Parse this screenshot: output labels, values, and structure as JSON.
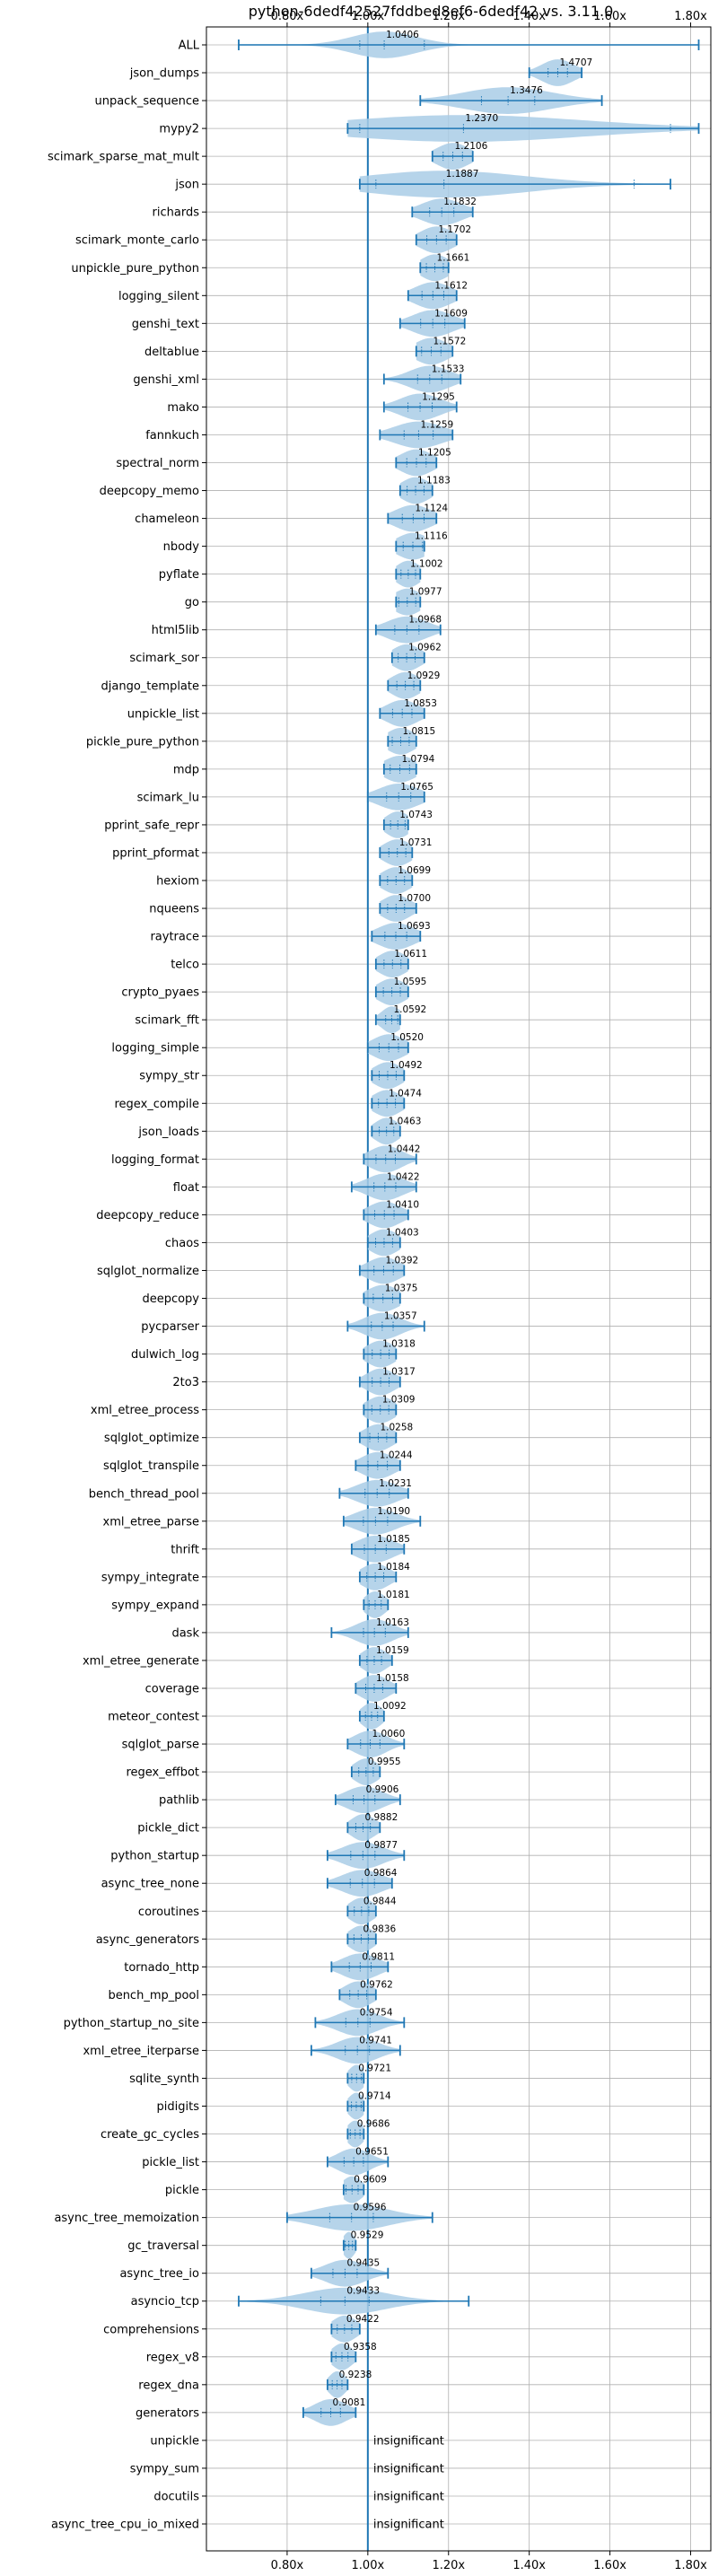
{
  "chart_data": {
    "type": "violin",
    "title": "python-6dedf42527fddbed8ef6-6dedf42 vs. 3.11.0",
    "xlabel": "",
    "ylabel": "",
    "xlim": [
      0.6,
      1.85
    ],
    "x_ticks": [
      0.8,
      1.0,
      1.2,
      1.4,
      1.6,
      1.8
    ],
    "x_tick_labels": [
      "0.80x",
      "1.00x",
      "1.20x",
      "1.40x",
      "1.60x",
      "1.80x"
    ],
    "x_axis_position": "top and bottom",
    "reference_line": 1.0,
    "grid": true,
    "series_color": "#1f77b4",
    "violin_fill": "#a9cce6",
    "insignificant_label": "insignificant",
    "benchmarks": [
      {
        "name": "ALL",
        "median": 1.0406,
        "label": "1.0406",
        "min": 0.68,
        "max": 1.82,
        "spread": 0.08,
        "q1": 0.98,
        "q3": 1.14
      },
      {
        "name": "json_dumps",
        "median": 1.4707,
        "label": "1.4707",
        "min": 1.4,
        "max": 1.53,
        "spread": 0.04
      },
      {
        "name": "unpack_sequence",
        "median": 1.3476,
        "label": "1.3476",
        "min": 1.13,
        "max": 1.58,
        "spread": 0.11
      },
      {
        "name": "mypy2",
        "median": 1.237,
        "label": "1.2370",
        "min": 0.95,
        "max": 1.82,
        "spread": 0.3,
        "q1": 0.98,
        "q3": 1.75
      },
      {
        "name": "scimark_sparse_mat_mult",
        "median": 1.2106,
        "label": "1.2106",
        "min": 1.16,
        "max": 1.26,
        "spread": 0.04
      },
      {
        "name": "json",
        "median": 1.1887,
        "label": "1.1887",
        "min": 0.98,
        "max": 1.75,
        "spread": 0.2,
        "q1": 1.02,
        "q3": 1.66
      },
      {
        "name": "richards",
        "median": 1.1832,
        "label": "1.1832",
        "min": 1.11,
        "max": 1.26,
        "spread": 0.05
      },
      {
        "name": "scimark_monte_carlo",
        "median": 1.1702,
        "label": "1.1702",
        "min": 1.12,
        "max": 1.22,
        "spread": 0.04
      },
      {
        "name": "unpickle_pure_python",
        "median": 1.1661,
        "label": "1.1661",
        "min": 1.13,
        "max": 1.2,
        "spread": 0.035
      },
      {
        "name": "logging_silent",
        "median": 1.1612,
        "label": "1.1612",
        "min": 1.1,
        "max": 1.22,
        "spread": 0.045
      },
      {
        "name": "genshi_text",
        "median": 1.1609,
        "label": "1.1609",
        "min": 1.08,
        "max": 1.24,
        "spread": 0.05
      },
      {
        "name": "deltablue",
        "median": 1.1572,
        "label": "1.1572",
        "min": 1.12,
        "max": 1.21,
        "spread": 0.04
      },
      {
        "name": "genshi_xml",
        "median": 1.1533,
        "label": "1.1533",
        "min": 1.04,
        "max": 1.23,
        "spread": 0.05
      },
      {
        "name": "mako",
        "median": 1.1295,
        "label": "1.1295",
        "min": 1.04,
        "max": 1.22,
        "spread": 0.05
      },
      {
        "name": "fannkuch",
        "median": 1.1259,
        "label": "1.1259",
        "min": 1.03,
        "max": 1.21,
        "spread": 0.06
      },
      {
        "name": "spectral_norm",
        "median": 1.1205,
        "label": "1.1205",
        "min": 1.07,
        "max": 1.17,
        "spread": 0.04
      },
      {
        "name": "deepcopy_memo",
        "median": 1.1183,
        "label": "1.1183",
        "min": 1.08,
        "max": 1.16,
        "spread": 0.035
      },
      {
        "name": "chameleon",
        "median": 1.1124,
        "label": "1.1124",
        "min": 1.05,
        "max": 1.17,
        "spread": 0.045
      },
      {
        "name": "nbody",
        "median": 1.1116,
        "label": "1.1116",
        "min": 1.07,
        "max": 1.14,
        "spread": 0.04
      },
      {
        "name": "pyflate",
        "median": 1.1002,
        "label": "1.1002",
        "min": 1.07,
        "max": 1.13,
        "spread": 0.03
      },
      {
        "name": "go",
        "median": 1.0977,
        "label": "1.0977",
        "min": 1.07,
        "max": 1.13,
        "spread": 0.035
      },
      {
        "name": "html5lib",
        "median": 1.0968,
        "label": "1.0968",
        "min": 1.02,
        "max": 1.18,
        "spread": 0.05
      },
      {
        "name": "scimark_sor",
        "median": 1.0962,
        "label": "1.0962",
        "min": 1.06,
        "max": 1.14,
        "spread": 0.035
      },
      {
        "name": "django_template",
        "median": 1.0929,
        "label": "1.0929",
        "min": 1.05,
        "max": 1.13,
        "spread": 0.035
      },
      {
        "name": "unpickle_list",
        "median": 1.0853,
        "label": "1.0853",
        "min": 1.03,
        "max": 1.14,
        "spread": 0.04
      },
      {
        "name": "pickle_pure_python",
        "median": 1.0815,
        "label": "1.0815",
        "min": 1.05,
        "max": 1.12,
        "spread": 0.035
      },
      {
        "name": "mdp",
        "median": 1.0794,
        "label": "1.0794",
        "min": 1.04,
        "max": 1.12,
        "spread": 0.04
      },
      {
        "name": "scimark_lu",
        "median": 1.0765,
        "label": "1.0765",
        "min": 1.0,
        "max": 1.14,
        "spread": 0.05
      },
      {
        "name": "pprint_safe_repr",
        "median": 1.0743,
        "label": "1.0743",
        "min": 1.04,
        "max": 1.1,
        "spread": 0.03
      },
      {
        "name": "pprint_pformat",
        "median": 1.0731,
        "label": "1.0731",
        "min": 1.03,
        "max": 1.11,
        "spread": 0.035
      },
      {
        "name": "hexiom",
        "median": 1.0699,
        "label": "1.0699",
        "min": 1.03,
        "max": 1.11,
        "spread": 0.035
      },
      {
        "name": "nqueens",
        "median": 1.07,
        "label": "1.0700",
        "min": 1.03,
        "max": 1.12,
        "spread": 0.035
      },
      {
        "name": "raytrace",
        "median": 1.0693,
        "label": "1.0693",
        "min": 1.01,
        "max": 1.13,
        "spread": 0.045
      },
      {
        "name": "telco",
        "median": 1.0611,
        "label": "1.0611",
        "min": 1.02,
        "max": 1.1,
        "spread": 0.035
      },
      {
        "name": "crypto_pyaes",
        "median": 1.0595,
        "label": "1.0595",
        "min": 1.02,
        "max": 1.1,
        "spread": 0.035
      },
      {
        "name": "scimark_fft",
        "median": 1.0592,
        "label": "1.0592",
        "min": 1.02,
        "max": 1.08,
        "spread": 0.025
      },
      {
        "name": "logging_simple",
        "median": 1.052,
        "label": "1.0520",
        "min": 1.0,
        "max": 1.1,
        "spread": 0.04
      },
      {
        "name": "sympy_str",
        "median": 1.0492,
        "label": "1.0492",
        "min": 1.01,
        "max": 1.09,
        "spread": 0.035
      },
      {
        "name": "regex_compile",
        "median": 1.0474,
        "label": "1.0474",
        "min": 1.01,
        "max": 1.09,
        "spread": 0.035
      },
      {
        "name": "json_loads",
        "median": 1.0463,
        "label": "1.0463",
        "min": 1.01,
        "max": 1.08,
        "spread": 0.03
      },
      {
        "name": "logging_format",
        "median": 1.0442,
        "label": "1.0442",
        "min": 0.99,
        "max": 1.12,
        "spread": 0.04
      },
      {
        "name": "float",
        "median": 1.0422,
        "label": "1.0422",
        "min": 0.96,
        "max": 1.12,
        "spread": 0.045
      },
      {
        "name": "deepcopy_reduce",
        "median": 1.041,
        "label": "1.0410",
        "min": 0.99,
        "max": 1.1,
        "spread": 0.04
      },
      {
        "name": "chaos",
        "median": 1.0403,
        "label": "1.0403",
        "min": 1.0,
        "max": 1.08,
        "spread": 0.035
      },
      {
        "name": "sqlglot_normalize",
        "median": 1.0392,
        "label": "1.0392",
        "min": 0.98,
        "max": 1.09,
        "spread": 0.04
      },
      {
        "name": "deepcopy",
        "median": 1.0375,
        "label": "1.0375",
        "min": 0.99,
        "max": 1.08,
        "spread": 0.04
      },
      {
        "name": "pycparser",
        "median": 1.0357,
        "label": "1.0357",
        "min": 0.95,
        "max": 1.14,
        "spread": 0.045
      },
      {
        "name": "dulwich_log",
        "median": 1.0318,
        "label": "1.0318",
        "min": 0.99,
        "max": 1.07,
        "spread": 0.035
      },
      {
        "name": "2to3",
        "median": 1.0317,
        "label": "1.0317",
        "min": 0.98,
        "max": 1.08,
        "spread": 0.035
      },
      {
        "name": "xml_etree_process",
        "median": 1.0309,
        "label": "1.0309",
        "min": 0.99,
        "max": 1.07,
        "spread": 0.035
      },
      {
        "name": "sqlglot_optimize",
        "median": 1.0258,
        "label": "1.0258",
        "min": 0.98,
        "max": 1.07,
        "spread": 0.035
      },
      {
        "name": "sqlglot_transpile",
        "median": 1.0244,
        "label": "1.0244",
        "min": 0.97,
        "max": 1.08,
        "spread": 0.04
      },
      {
        "name": "bench_thread_pool",
        "median": 1.0231,
        "label": "1.0231",
        "min": 0.93,
        "max": 1.1,
        "spread": 0.05
      },
      {
        "name": "xml_etree_parse",
        "median": 1.019,
        "label": "1.0190",
        "min": 0.94,
        "max": 1.13,
        "spread": 0.05
      },
      {
        "name": "thrift",
        "median": 1.0185,
        "label": "1.0185",
        "min": 0.96,
        "max": 1.09,
        "spread": 0.045
      },
      {
        "name": "sympy_integrate",
        "median": 1.0184,
        "label": "1.0184",
        "min": 0.98,
        "max": 1.07,
        "spread": 0.035
      },
      {
        "name": "sympy_expand",
        "median": 1.0181,
        "label": "1.0181",
        "min": 0.99,
        "max": 1.05,
        "spread": 0.025
      },
      {
        "name": "dask",
        "median": 1.0163,
        "label": "1.0163",
        "min": 0.91,
        "max": 1.1,
        "spread": 0.045
      },
      {
        "name": "xml_etree_generate",
        "median": 1.0159,
        "label": "1.0159",
        "min": 0.98,
        "max": 1.06,
        "spread": 0.03
      },
      {
        "name": "coverage",
        "median": 1.0158,
        "label": "1.0158",
        "min": 0.97,
        "max": 1.07,
        "spread": 0.035
      },
      {
        "name": "meteor_contest",
        "median": 1.0092,
        "label": "1.0092",
        "min": 0.98,
        "max": 1.04,
        "spread": 0.025
      },
      {
        "name": "sqlglot_parse",
        "median": 1.006,
        "label": "1.0060",
        "min": 0.95,
        "max": 1.09,
        "spread": 0.04
      },
      {
        "name": "regex_effbot",
        "median": 0.9955,
        "label": "0.9955",
        "min": 0.96,
        "max": 1.03,
        "spread": 0.03
      },
      {
        "name": "pathlib",
        "median": 0.9906,
        "label": "0.9906",
        "min": 0.92,
        "max": 1.08,
        "spread": 0.045
      },
      {
        "name": "pickle_dict",
        "median": 0.9882,
        "label": "0.9882",
        "min": 0.95,
        "max": 1.03,
        "spread": 0.03
      },
      {
        "name": "python_startup",
        "median": 0.9877,
        "label": "0.9877",
        "min": 0.9,
        "max": 1.09,
        "spread": 0.05
      },
      {
        "name": "async_tree_none",
        "median": 0.9864,
        "label": "0.9864",
        "min": 0.9,
        "max": 1.06,
        "spread": 0.05
      },
      {
        "name": "coroutines",
        "median": 0.9844,
        "label": "0.9844",
        "min": 0.95,
        "max": 1.02,
        "spread": 0.03
      },
      {
        "name": "async_generators",
        "median": 0.9836,
        "label": "0.9836",
        "min": 0.95,
        "max": 1.02,
        "spread": 0.03
      },
      {
        "name": "tornado_http",
        "median": 0.9811,
        "label": "0.9811",
        "min": 0.91,
        "max": 1.05,
        "spread": 0.045
      },
      {
        "name": "bench_mp_pool",
        "median": 0.9762,
        "label": "0.9762",
        "min": 0.93,
        "max": 1.02,
        "spread": 0.035
      },
      {
        "name": "python_startup_no_site",
        "median": 0.9754,
        "label": "0.9754",
        "min": 0.87,
        "max": 1.09,
        "spread": 0.05
      },
      {
        "name": "xml_etree_iterparse",
        "median": 0.9741,
        "label": "0.9741",
        "min": 0.86,
        "max": 1.08,
        "spread": 0.05
      },
      {
        "name": "sqlite_synth",
        "median": 0.9721,
        "label": "0.9721",
        "min": 0.95,
        "max": 0.99,
        "spread": 0.02
      },
      {
        "name": "pidigits",
        "median": 0.9714,
        "label": "0.9714",
        "min": 0.95,
        "max": 0.99,
        "spread": 0.02
      },
      {
        "name": "create_gc_cycles",
        "median": 0.9686,
        "label": "0.9686",
        "min": 0.95,
        "max": 0.99,
        "spread": 0.02
      },
      {
        "name": "pickle_list",
        "median": 0.9651,
        "label": "0.9651",
        "min": 0.9,
        "max": 1.05,
        "spread": 0.04
      },
      {
        "name": "pickle",
        "median": 0.9609,
        "label": "0.9609",
        "min": 0.94,
        "max": 0.99,
        "spread": 0.025
      },
      {
        "name": "async_tree_memoization",
        "median": 0.9596,
        "label": "0.9596",
        "min": 0.8,
        "max": 1.16,
        "spread": 0.09
      },
      {
        "name": "gc_traversal",
        "median": 0.9529,
        "label": "0.9529",
        "min": 0.94,
        "max": 0.97,
        "spread": 0.015
      },
      {
        "name": "async_tree_io",
        "median": 0.9435,
        "label": "0.9435",
        "min": 0.86,
        "max": 1.05,
        "spread": 0.05
      },
      {
        "name": "asyncio_tcp",
        "median": 0.9433,
        "label": "0.9433",
        "min": 0.68,
        "max": 1.25,
        "spread": 0.1
      },
      {
        "name": "comprehensions",
        "median": 0.9422,
        "label": "0.9422",
        "min": 0.91,
        "max": 0.98,
        "spread": 0.03
      },
      {
        "name": "regex_v8",
        "median": 0.9358,
        "label": "0.9358",
        "min": 0.91,
        "max": 0.97,
        "spread": 0.025
      },
      {
        "name": "regex_dna",
        "median": 0.9238,
        "label": "0.9238",
        "min": 0.9,
        "max": 0.95,
        "spread": 0.02
      },
      {
        "name": "generators",
        "median": 0.9081,
        "label": "0.9081",
        "min": 0.84,
        "max": 0.97,
        "spread": 0.04
      },
      {
        "name": "unpickle",
        "insignificant": true
      },
      {
        "name": "sympy_sum",
        "insignificant": true
      },
      {
        "name": "docutils",
        "insignificant": true
      },
      {
        "name": "async_tree_cpu_io_mixed",
        "insignificant": true
      }
    ]
  }
}
